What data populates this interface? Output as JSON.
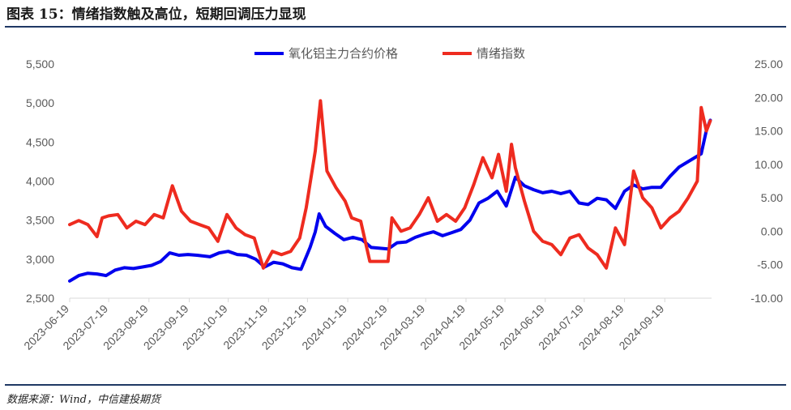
{
  "header": {
    "title": "图表 15：情绪指数触及高位，短期回调压力显现"
  },
  "footer": {
    "source": "数据来源：Wind，中信建投期货"
  },
  "chart_data": {
    "type": "line",
    "x_ticks": [
      "2023-06-19",
      "2023-07-19",
      "2023-08-19",
      "2023-09-19",
      "2023-10-19",
      "2023-11-19",
      "2023-12-19",
      "2024-01-19",
      "2024-02-19",
      "2024-03-19",
      "2024-04-19",
      "2024-05-19",
      "2024-06-19",
      "2024-07-19",
      "2024-08-19",
      "2024-09-19"
    ],
    "left_axis": {
      "ylim": [
        2500,
        5500
      ],
      "ticks": [
        "2,500",
        "3,000",
        "3,500",
        "4,000",
        "4,500",
        "5,000",
        "5,500"
      ]
    },
    "right_axis": {
      "ylim": [
        -10,
        25
      ],
      "ticks": [
        "-10.00",
        "-5.00",
        "0.00",
        "5.00",
        "10.00",
        "15.00",
        "20.00",
        "25.00"
      ]
    },
    "legend_position": "top-center",
    "series": [
      {
        "name": "氧化铝主力合约价格",
        "axis": "left",
        "color": "#0000ee",
        "points": [
          [
            "2023-06-19",
            2720
          ],
          [
            "2023-06-26",
            2790
          ],
          [
            "2023-07-03",
            2820
          ],
          [
            "2023-07-10",
            2810
          ],
          [
            "2023-07-17",
            2790
          ],
          [
            "2023-07-24",
            2860
          ],
          [
            "2023-07-31",
            2890
          ],
          [
            "2023-08-07",
            2880
          ],
          [
            "2023-08-14",
            2900
          ],
          [
            "2023-08-21",
            2920
          ],
          [
            "2023-08-28",
            2970
          ],
          [
            "2023-09-04",
            3080
          ],
          [
            "2023-09-11",
            3050
          ],
          [
            "2023-09-18",
            3060
          ],
          [
            "2023-09-25",
            3050
          ],
          [
            "2023-10-05",
            3030
          ],
          [
            "2023-10-12",
            3080
          ],
          [
            "2023-10-19",
            3100
          ],
          [
            "2023-10-26",
            3060
          ],
          [
            "2023-11-02",
            3050
          ],
          [
            "2023-11-09",
            3000
          ],
          [
            "2023-11-16",
            2900
          ],
          [
            "2023-11-23",
            2960
          ],
          [
            "2023-11-30",
            2940
          ],
          [
            "2023-12-07",
            2890
          ],
          [
            "2023-12-14",
            2870
          ],
          [
            "2023-12-21",
            3150
          ],
          [
            "2023-12-25",
            3350
          ],
          [
            "2023-12-28",
            3580
          ],
          [
            "2024-01-02",
            3420
          ],
          [
            "2024-01-09",
            3330
          ],
          [
            "2024-01-16",
            3250
          ],
          [
            "2024-01-23",
            3280
          ],
          [
            "2024-01-30",
            3250
          ],
          [
            "2024-02-06",
            3150
          ],
          [
            "2024-02-19",
            3130
          ],
          [
            "2024-02-26",
            3210
          ],
          [
            "2024-03-04",
            3220
          ],
          [
            "2024-03-11",
            3280
          ],
          [
            "2024-03-18",
            3320
          ],
          [
            "2024-03-25",
            3350
          ],
          [
            "2024-04-01",
            3300
          ],
          [
            "2024-04-08",
            3340
          ],
          [
            "2024-04-15",
            3380
          ],
          [
            "2024-04-22",
            3500
          ],
          [
            "2024-04-29",
            3720
          ],
          [
            "2024-05-06",
            3780
          ],
          [
            "2024-05-13",
            3870
          ],
          [
            "2024-05-20",
            3680
          ],
          [
            "2024-05-27",
            4050
          ],
          [
            "2024-06-03",
            3940
          ],
          [
            "2024-06-10",
            3890
          ],
          [
            "2024-06-17",
            3850
          ],
          [
            "2024-06-24",
            3870
          ],
          [
            "2024-07-01",
            3840
          ],
          [
            "2024-07-08",
            3870
          ],
          [
            "2024-07-15",
            3720
          ],
          [
            "2024-07-22",
            3700
          ],
          [
            "2024-07-29",
            3780
          ],
          [
            "2024-08-05",
            3760
          ],
          [
            "2024-08-12",
            3650
          ],
          [
            "2024-08-19",
            3870
          ],
          [
            "2024-08-26",
            3950
          ],
          [
            "2024-09-02",
            3900
          ],
          [
            "2024-09-09",
            3920
          ],
          [
            "2024-09-16",
            3920
          ],
          [
            "2024-09-23",
            4060
          ],
          [
            "2024-09-30",
            4180
          ],
          [
            "2024-10-10",
            4280
          ],
          [
            "2024-10-17",
            4350
          ],
          [
            "2024-10-21",
            4650
          ],
          [
            "2024-10-24",
            4780
          ]
        ]
      },
      {
        "name": "情绪指数",
        "axis": "right",
        "color": "#ee2b1f",
        "points": [
          [
            "2023-06-19",
            1.0
          ],
          [
            "2023-06-26",
            1.6
          ],
          [
            "2023-07-03",
            1.0
          ],
          [
            "2023-07-10",
            -0.8
          ],
          [
            "2023-07-14",
            2.0
          ],
          [
            "2023-07-19",
            2.3
          ],
          [
            "2023-07-26",
            2.5
          ],
          [
            "2023-08-02",
            0.5
          ],
          [
            "2023-08-09",
            1.5
          ],
          [
            "2023-08-16",
            1.0
          ],
          [
            "2023-08-23",
            2.5
          ],
          [
            "2023-08-30",
            2.0
          ],
          [
            "2023-09-06",
            6.8
          ],
          [
            "2023-09-13",
            3.0
          ],
          [
            "2023-09-20",
            1.5
          ],
          [
            "2023-09-27",
            1.0
          ],
          [
            "2023-10-04",
            0.5
          ],
          [
            "2023-10-11",
            -1.5
          ],
          [
            "2023-10-18",
            2.5
          ],
          [
            "2023-10-25",
            0.5
          ],
          [
            "2023-11-01",
            -0.5
          ],
          [
            "2023-11-08",
            -1.0
          ],
          [
            "2023-11-15",
            -5.5
          ],
          [
            "2023-11-22",
            -3.0
          ],
          [
            "2023-11-29",
            -3.5
          ],
          [
            "2023-12-06",
            -3.0
          ],
          [
            "2023-12-13",
            -1.0
          ],
          [
            "2023-12-18",
            3.5
          ],
          [
            "2023-12-25",
            12.0
          ],
          [
            "2023-12-29",
            19.5
          ],
          [
            "2024-01-03",
            9.0
          ],
          [
            "2024-01-10",
            6.5
          ],
          [
            "2024-01-17",
            4.5
          ],
          [
            "2024-01-22",
            2.0
          ],
          [
            "2024-01-29",
            1.5
          ],
          [
            "2024-02-05",
            -4.5
          ],
          [
            "2024-02-19",
            -4.5
          ],
          [
            "2024-02-22",
            2.0
          ],
          [
            "2024-02-29",
            0.0
          ],
          [
            "2024-03-07",
            0.5
          ],
          [
            "2024-03-14",
            2.5
          ],
          [
            "2024-03-21",
            5.0
          ],
          [
            "2024-03-28",
            1.5
          ],
          [
            "2024-04-04",
            2.5
          ],
          [
            "2024-04-11",
            1.5
          ],
          [
            "2024-04-18",
            3.5
          ],
          [
            "2024-04-25",
            7.0
          ],
          [
            "2024-05-02",
            11.0
          ],
          [
            "2024-05-09",
            8.0
          ],
          [
            "2024-05-14",
            11.5
          ],
          [
            "2024-05-20",
            6.0
          ],
          [
            "2024-05-24",
            13.0
          ],
          [
            "2024-05-27",
            9.5
          ],
          [
            "2024-06-03",
            4.5
          ],
          [
            "2024-06-10",
            0.0
          ],
          [
            "2024-06-17",
            -1.5
          ],
          [
            "2024-06-24",
            -2.0
          ],
          [
            "2024-07-01",
            -3.5
          ],
          [
            "2024-07-08",
            -1.0
          ],
          [
            "2024-07-15",
            -0.5
          ],
          [
            "2024-07-22",
            -2.5
          ],
          [
            "2024-07-29",
            -3.5
          ],
          [
            "2024-08-05",
            -5.5
          ],
          [
            "2024-08-12",
            0.5
          ],
          [
            "2024-08-19",
            -2.0
          ],
          [
            "2024-08-26",
            9.0
          ],
          [
            "2024-09-02",
            5.0
          ],
          [
            "2024-09-09",
            3.5
          ],
          [
            "2024-09-16",
            0.5
          ],
          [
            "2024-09-23",
            2.0
          ],
          [
            "2024-09-30",
            3.0
          ],
          [
            "2024-10-07",
            5.0
          ],
          [
            "2024-10-14",
            7.5
          ],
          [
            "2024-10-17",
            18.5
          ],
          [
            "2024-10-21",
            15.0
          ],
          [
            "2024-10-24",
            16.5
          ]
        ]
      }
    ]
  }
}
